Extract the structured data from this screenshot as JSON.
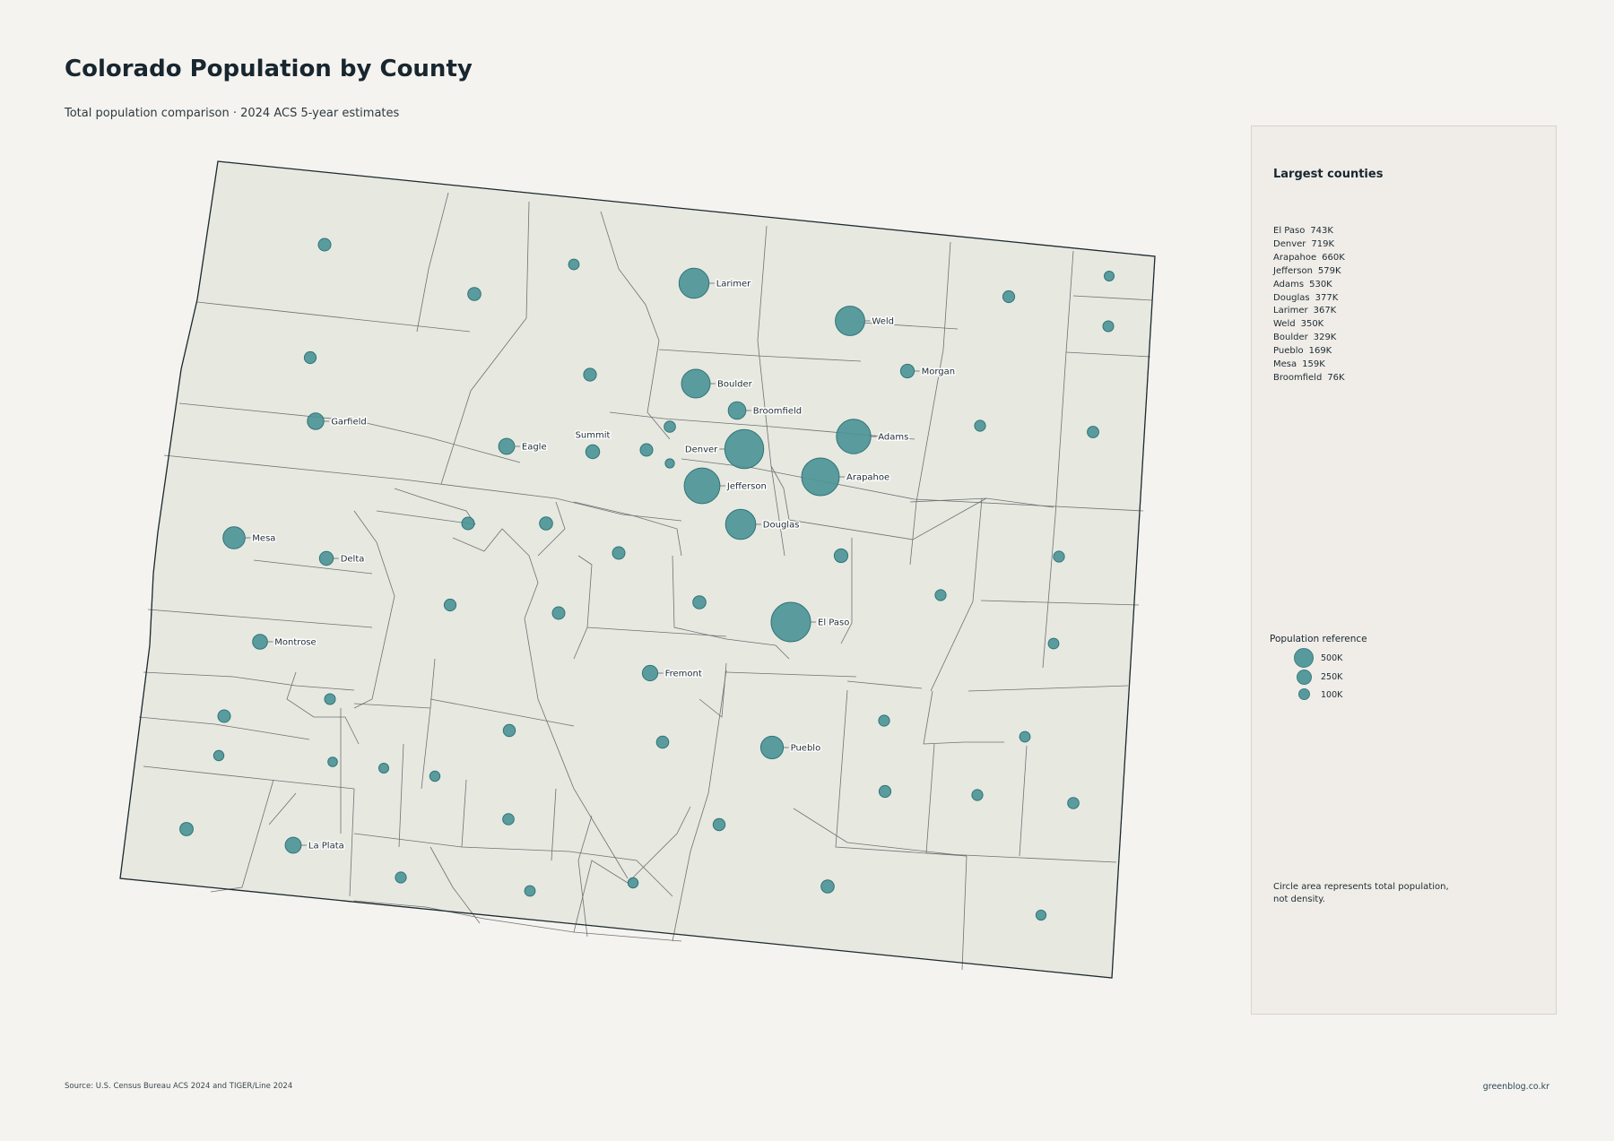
{
  "header": {
    "title": "Colorado Population by County",
    "subtitle": "Total population comparison · 2024 ACS 5-year estimates"
  },
  "panel": {
    "title": "Largest counties",
    "ranking": [
      {
        "name": "El Paso",
        "value": "743K"
      },
      {
        "name": "Denver",
        "value": "719K"
      },
      {
        "name": "Arapahoe",
        "value": "660K"
      },
      {
        "name": "Jefferson",
        "value": "579K"
      },
      {
        "name": "Adams",
        "value": "530K"
      },
      {
        "name": "Douglas",
        "value": "377K"
      },
      {
        "name": "Larimer",
        "value": "367K"
      },
      {
        "name": "Weld",
        "value": "350K"
      },
      {
        "name": "Boulder",
        "value": "329K"
      },
      {
        "name": "Pueblo",
        "value": "169K"
      },
      {
        "name": "Mesa",
        "value": "159K"
      },
      {
        "name": "Broomfield",
        "value": "76K"
      }
    ],
    "reference_title": "Population reference",
    "reference": [
      {
        "label": "500K",
        "value": 500000
      },
      {
        "label": "250K",
        "value": 250000
      },
      {
        "label": "100K",
        "value": 100000
      }
    ],
    "note": "Circle area represents total population, not density."
  },
  "footer": {
    "source": "Source: U.S. Census Bureau ACS 2024 and TIGER/Line 2024",
    "credit": "greenblog.co.kr"
  },
  "colors": {
    "bubble": "#4a9397",
    "county_fill": "#e7e8e0",
    "background": "#f5f3ef"
  },
  "labeled_counties": [
    {
      "name": "Larimer",
      "population": 367000
    },
    {
      "name": "Weld",
      "population": 350000
    },
    {
      "name": "Morgan",
      "population": 29000
    },
    {
      "name": "Boulder",
      "population": 329000
    },
    {
      "name": "Broomfield",
      "population": 76000
    },
    {
      "name": "Garfield",
      "population": 62000
    },
    {
      "name": "Summit",
      "population": 31000
    },
    {
      "name": "Eagle",
      "population": 55000
    },
    {
      "name": "Denver",
      "population": 719000
    },
    {
      "name": "Adams",
      "population": 530000
    },
    {
      "name": "Arapahoe",
      "population": 660000
    },
    {
      "name": "Jefferson",
      "population": 579000
    },
    {
      "name": "Douglas",
      "population": 377000
    },
    {
      "name": "Mesa",
      "population": 159000
    },
    {
      "name": "Delta",
      "population": 32000
    },
    {
      "name": "El Paso",
      "population": 743000
    },
    {
      "name": "Montrose",
      "population": 43000
    },
    {
      "name": "Fremont",
      "population": 49000
    },
    {
      "name": "Pueblo",
      "population": 169000
    },
    {
      "name": "La Plata",
      "population": 56000
    }
  ]
}
